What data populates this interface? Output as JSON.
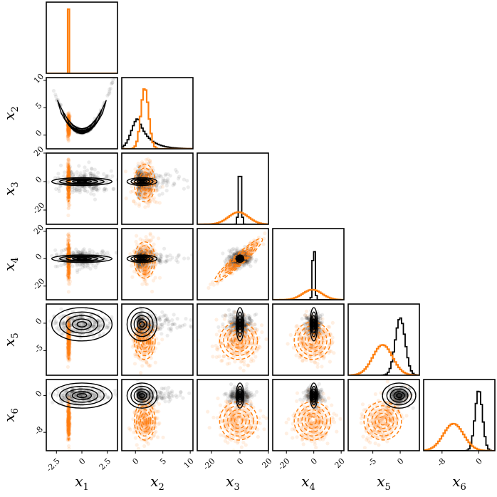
{
  "chart_data": {
    "type": "corner",
    "variables": [
      "x_1",
      "x_2",
      "x_3",
      "x_4",
      "x_5",
      "x_6"
    ],
    "labels": [
      {
        "main": "x",
        "sub": "1"
      },
      {
        "main": "x",
        "sub": "2"
      },
      {
        "main": "x",
        "sub": "3"
      },
      {
        "main": "x",
        "sub": "4"
      },
      {
        "main": "x",
        "sub": "5"
      },
      {
        "main": "x",
        "sub": "6"
      }
    ],
    "ranges": [
      [
        -3.5,
        3.5
      ],
      [
        -2.5,
        10.5
      ],
      [
        -30,
        20
      ],
      [
        -30,
        22
      ],
      [
        -9.5,
        3.5
      ],
      [
        -12,
        3.5
      ]
    ],
    "xticks": [
      {
        "values": [
          -2.5,
          0,
          2.5
        ],
        "labels": [
          "-2.5",
          "0",
          "2.5"
        ]
      },
      {
        "values": [
          0,
          5,
          10
        ],
        "labels": [
          "0",
          "5",
          "10"
        ]
      },
      {
        "values": [
          -20,
          0,
          20
        ],
        "labels": [
          "-20",
          "0",
          "20"
        ]
      },
      {
        "values": [
          -20,
          0,
          20
        ],
        "labels": [
          "-20",
          "0",
          "20"
        ]
      },
      {
        "values": [
          -5,
          0
        ],
        "labels": [
          "-5",
          "0"
        ]
      },
      {
        "values": [
          -8,
          0
        ],
        "labels": [
          "-8",
          "0"
        ]
      }
    ],
    "yticks": [
      null,
      {
        "values": [
          0,
          5,
          10
        ],
        "labels": [
          "0",
          "5",
          "10"
        ]
      },
      {
        "values": [
          -20,
          0,
          20
        ],
        "labels": [
          "-20",
          "0",
          "20"
        ]
      },
      {
        "values": [
          -20,
          0,
          20
        ],
        "labels": [
          "-20",
          "0",
          "20"
        ]
      },
      {
        "values": [
          -5,
          0
        ],
        "labels": [
          "-5",
          "0"
        ]
      },
      {
        "values": [
          -8,
          0
        ],
        "labels": [
          "-8",
          "0"
        ]
      }
    ],
    "colors": {
      "reference": "#000000",
      "approx": "#ff7f0e"
    },
    "series": [
      {
        "role": "reference",
        "style": "solid contours + scatter",
        "marginals": [
          {
            "center": 0,
            "width": 2.2,
            "peak": 0
          },
          {
            "center": 0.5,
            "width": 1.2,
            "peak": 0.45,
            "tail": "right-skewed"
          },
          {
            "center": 0,
            "width": 0.9,
            "peak": 0.9
          },
          {
            "center": 0,
            "width": 0.8,
            "peak": 0.9
          },
          {
            "center": 0,
            "width": 0.9,
            "peak": 0.85
          },
          {
            "center": 0,
            "width": 0.8,
            "peak": 0.9
          }
        ]
      },
      {
        "role": "approx",
        "style": "dashed contours + scatter",
        "marginals": [
          {
            "center": -1.3,
            "width": 0.02,
            "peak": 0.95
          },
          {
            "center": 1.7,
            "width": 0.7,
            "peak": 0.9
          },
          {
            "center": -1,
            "width": 7,
            "peak": 0.18
          },
          {
            "center": -1,
            "width": 7,
            "peak": 0.15
          },
          {
            "center": -3.2,
            "width": 1.8,
            "peak": 0.45
          },
          {
            "center": -5.5,
            "width": 2.2,
            "peak": 0.4
          }
        ]
      }
    ],
    "curve_shape": {
      "x2_vs_x1": "banana, x2 = x1^2",
      "x4_vs_x3": "positive linear correlation (approx)"
    },
    "grid": false,
    "legend": "none"
  }
}
